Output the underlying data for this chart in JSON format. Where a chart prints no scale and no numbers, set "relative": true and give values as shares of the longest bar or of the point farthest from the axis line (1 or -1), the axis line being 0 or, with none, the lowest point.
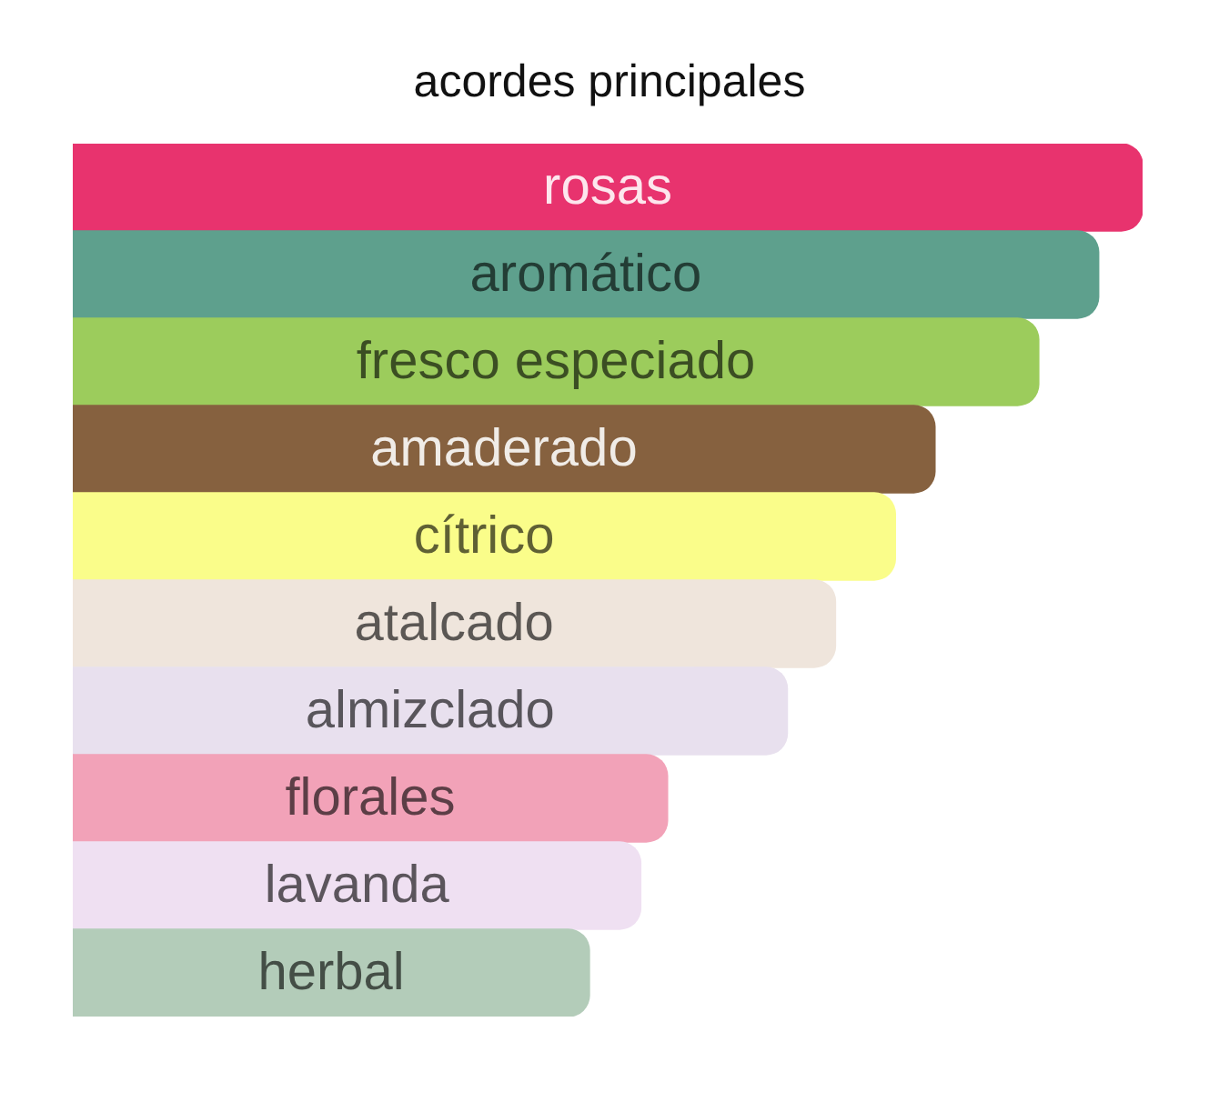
{
  "chart_data": {
    "type": "bar",
    "orientation": "horizontal",
    "relative": true,
    "title": "acordes principales",
    "categories": [
      "rosas",
      "aromático",
      "fresco especiado",
      "amaderado",
      "cítrico",
      "atalcado",
      "almizclado",
      "florales",
      "lavanda",
      "herbal"
    ],
    "values": [
      1,
      0.959,
      0.903,
      0.806,
      0.769,
      0.713,
      0.668,
      0.556,
      0.531,
      0.483
    ],
    "colors": [
      "#e8336e",
      "#5ea08d",
      "#9ccc5c",
      "#86613f",
      "#fafd8a",
      "#efe5dc",
      "#e8e0ee",
      "#f2a2b8",
      "#efe0f2",
      "#b3ccb9"
    ]
  }
}
